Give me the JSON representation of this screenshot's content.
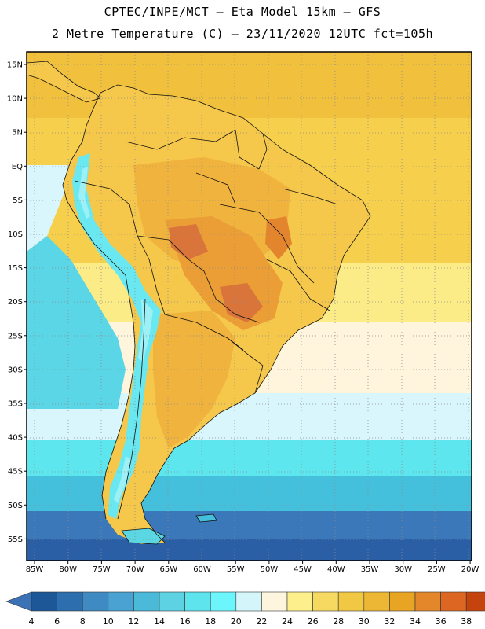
{
  "header": {
    "line1": "CPTEC/INPE/MCT –  Eta Model 15km – GFS",
    "line2": "2 Metre Temperature (C) – 23/11/2020 12UTC fct=105h"
  },
  "map": {
    "lat_labels": [
      "15N",
      "10N",
      "5N",
      "EQ",
      "5S",
      "10S",
      "15S",
      "20S",
      "25S",
      "30S",
      "35S",
      "40S",
      "45S",
      "50S",
      "55S"
    ],
    "lon_labels": [
      "85W",
      "80W",
      "75W",
      "70W",
      "65W",
      "60W",
      "55W",
      "50W",
      "45W",
      "40W",
      "35W",
      "30W",
      "25W",
      "20W"
    ],
    "ocean_colors": [
      "#2a5fa6",
      "#3a78ba",
      "#4a9ecb",
      "#45c0dc",
      "#5ad6e6",
      "#5ee6ee",
      "#d8f6fc",
      "#fff4dc",
      "#fcec88",
      "#f6d04c",
      "#f1c03c"
    ],
    "land_colors": [
      "#f5c74a",
      "#f0b33e",
      "#ea9e35",
      "#e2852d",
      "#d9743a",
      "#69e8f2",
      "#9ef0f7",
      "#5bd7e4"
    ]
  },
  "colorbar": {
    "labels": [
      "4",
      "6",
      "8",
      "10",
      "12",
      "14",
      "16",
      "18",
      "20",
      "22",
      "24",
      "26",
      "28",
      "30",
      "32",
      "34",
      "36",
      "38"
    ],
    "colors": [
      "#1e5797",
      "#2d6fae",
      "#3f8ac2",
      "#4aa2d2",
      "#4bbad9",
      "#5cd2e3",
      "#5ee4ed",
      "#6cf6fc",
      "#d4f6fb",
      "#fdf5dd",
      "#fcef8c",
      "#f6d961",
      "#f1c843",
      "#ebb735",
      "#e8a423",
      "#e4872b",
      "#dd6722",
      "#c5430d"
    ],
    "left_arrow_color": "#3b72b6",
    "right_arrow_color": "#c24310"
  }
}
